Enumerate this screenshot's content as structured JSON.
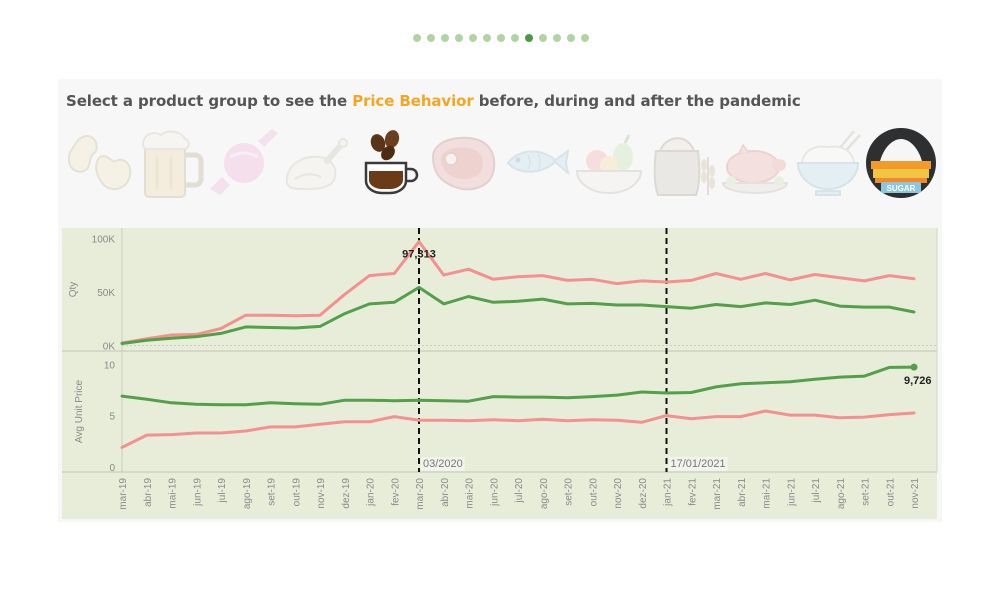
{
  "pagination": {
    "count": 13,
    "active_index": 8
  },
  "header": {
    "prefix": "Select a product group to see the",
    "highlight": "Price Behavior",
    "suffix": "before, during and after the pandemic",
    "highlight_color": "#f2a720"
  },
  "product_groups": [
    {
      "icon": "cashew-icon",
      "active": false
    },
    {
      "icon": "beer-mug-icon",
      "active": false
    },
    {
      "icon": "candy-icon",
      "active": false
    },
    {
      "icon": "roast-chicken-icon",
      "active": false
    },
    {
      "icon": "coffee-cup-icon",
      "active": false,
      "highlighted": true
    },
    {
      "icon": "steak-icon",
      "active": false
    },
    {
      "icon": "fish-icon",
      "active": false
    },
    {
      "icon": "fruit-bowl-icon",
      "active": false
    },
    {
      "icon": "grain-sack-icon",
      "active": false
    },
    {
      "icon": "roast-pig-icon",
      "active": false
    },
    {
      "icon": "rice-bowl-icon",
      "active": false
    },
    {
      "icon": "sugar-icon",
      "active": true,
      "label": "SUGAR"
    }
  ],
  "chart_data": {
    "type": "line",
    "x": [
      "mar-19",
      "abr-19",
      "mai-19",
      "jun-19",
      "jul-19",
      "ago-19",
      "set-19",
      "out-19",
      "nov-19",
      "dez-19",
      "jan-20",
      "fev-20",
      "mar-20",
      "abr-20",
      "mai-20",
      "jun-20",
      "jul-20",
      "ago-20",
      "set-20",
      "out-20",
      "nov-20",
      "dez-20",
      "jan-21",
      "fev-21",
      "mar-21",
      "abr-21",
      "mai-21",
      "jun-21",
      "jul-21",
      "ago-21",
      "set-21",
      "out-21",
      "nov-21"
    ],
    "panels": [
      {
        "ylabel": "Qty",
        "ylim": [
          -5000,
          110000
        ],
        "yticks": [
          0,
          50000,
          100000
        ],
        "ytick_labels": [
          "0K",
          "50K",
          "100K"
        ],
        "series": [
          {
            "color": "#f4918f",
            "values": [
              2500,
              6500,
              10000,
              10500,
              16000,
              28500,
              28500,
              28000,
              28500,
              48000,
              65500,
              67500,
              97313,
              66000,
              71500,
              62000,
              64500,
              65500,
              61000,
              62000,
              58000,
              60500,
              59500,
              61000,
              67500,
              62000,
              67500,
              61500,
              66500,
              63500,
              60500,
              65500,
              62500
            ]
          },
          {
            "color": "#54a04a",
            "values": [
              2000,
              5000,
              7000,
              8500,
              11500,
              17500,
              17000,
              16500,
              18000,
              30000,
              39000,
              40500,
              54500,
              39000,
              46000,
              40500,
              41500,
              43500,
              39000,
              39500,
              38000,
              38000,
              36500,
              35000,
              38500,
              36500,
              40000,
              38500,
              42500,
              37000,
              36000,
              36000,
              31500
            ]
          }
        ],
        "annotations": [
          {
            "index": 12,
            "series": 0,
            "text": "97,313"
          }
        ]
      },
      {
        "ylabel": "Avg Unit Price",
        "ylim": [
          -0.5,
          11.3
        ],
        "yticks": [
          0,
          5,
          10
        ],
        "ytick_labels": [
          "0",
          "5",
          "10"
        ],
        "series": [
          {
            "color": "#f4918f",
            "values": [
              1.9,
              3.1,
              3.15,
              3.3,
              3.3,
              3.5,
              3.9,
              3.9,
              4.15,
              4.4,
              4.4,
              4.9,
              4.55,
              4.55,
              4.5,
              4.6,
              4.5,
              4.65,
              4.5,
              4.6,
              4.55,
              4.35,
              5.0,
              4.7,
              4.9,
              4.9,
              5.45,
              5.05,
              5.05,
              4.8,
              4.85,
              5.1,
              5.25
            ]
          },
          {
            "color": "#54a04a",
            "values": [
              6.9,
              6.6,
              6.25,
              6.1,
              6.05,
              6.05,
              6.25,
              6.15,
              6.1,
              6.5,
              6.5,
              6.45,
              6.5,
              6.45,
              6.4,
              6.85,
              6.8,
              6.8,
              6.75,
              6.85,
              7.0,
              7.3,
              7.2,
              7.25,
              7.8,
              8.1,
              8.2,
              8.3,
              8.55,
              8.75,
              8.85,
              9.7,
              9.726
            ]
          }
        ],
        "annotations": [
          {
            "index": 32,
            "series": 1,
            "text": "9,726",
            "marker": true
          }
        ]
      }
    ],
    "reference_lines": [
      {
        "x_index": 12,
        "label": "03/2020"
      },
      {
        "x_index": 22,
        "label": "17/01/2021"
      }
    ],
    "grid": false
  }
}
